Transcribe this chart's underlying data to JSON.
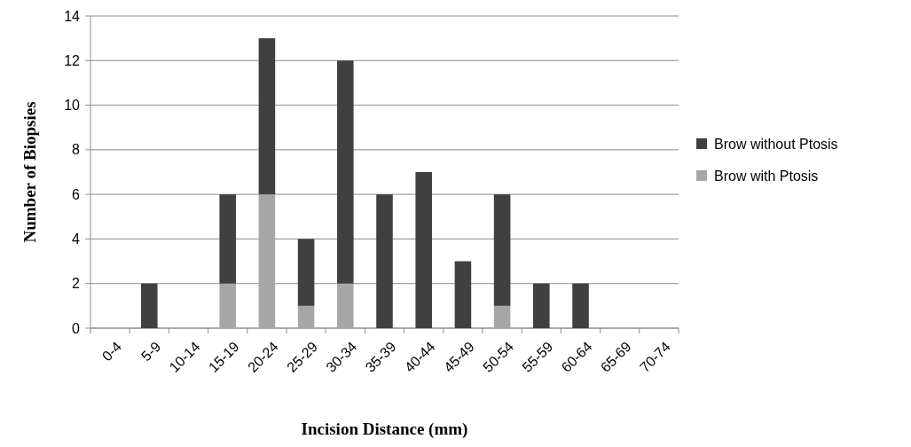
{
  "chart_data": {
    "type": "bar",
    "stacked": true,
    "xlabel": "Incision Distance (mm)",
    "ylabel": "Number of Biopsies",
    "categories": [
      "0-4",
      "5-9",
      "10-14",
      "15-19",
      "20-24",
      "25-29",
      "30-34",
      "35-39",
      "40-44",
      "45-49",
      "50-54",
      "55-59",
      "60-64",
      "65-69",
      "70-74"
    ],
    "series": [
      {
        "name": "Brow with Ptosis",
        "color": "#a6a6a6",
        "values": [
          0,
          0,
          0,
          2,
          6,
          1,
          2,
          0,
          0,
          0,
          1,
          0,
          0,
          0,
          0
        ]
      },
      {
        "name": "Brow without Ptosis",
        "color": "#404040",
        "values": [
          0,
          2,
          0,
          4,
          7,
          3,
          10,
          6,
          7,
          3,
          5,
          2,
          2,
          0,
          0
        ]
      }
    ],
    "ylim": [
      0,
      14
    ],
    "yticks": [
      0,
      2,
      4,
      6,
      8,
      10,
      12,
      14
    ],
    "grid": "y",
    "legend": "right"
  }
}
